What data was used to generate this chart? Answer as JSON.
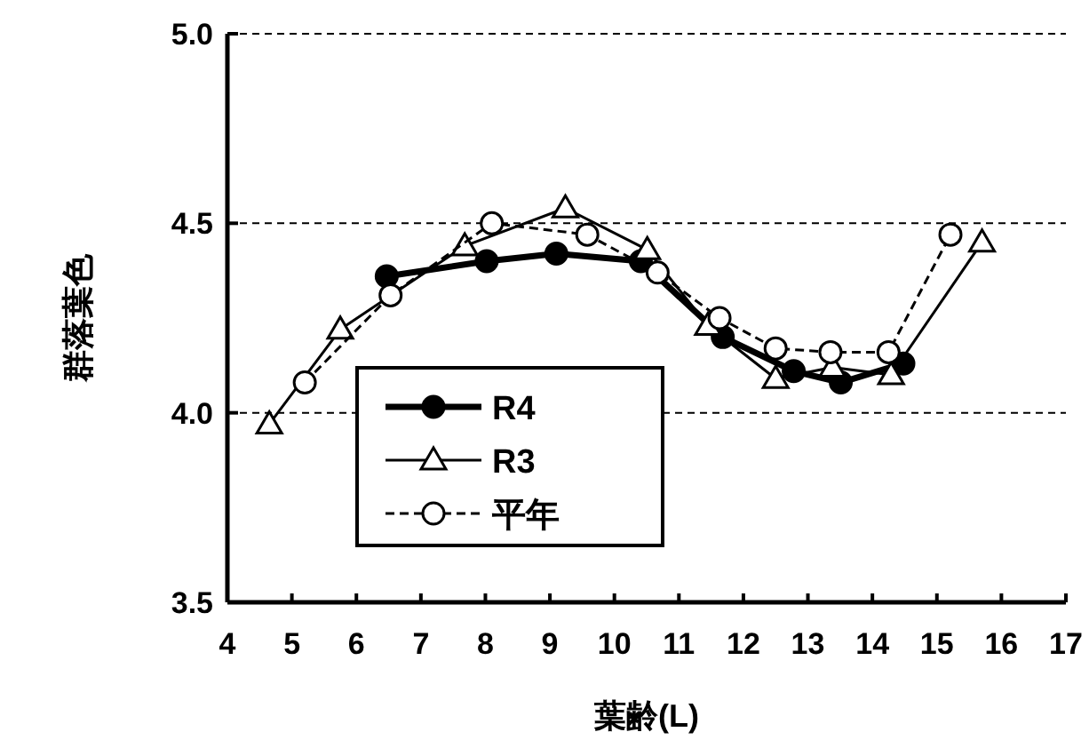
{
  "chart_data": {
    "type": "line",
    "xlabel": "葉齢(L)",
    "ylabel": "群落葉色",
    "xlim": [
      4,
      17
    ],
    "xticks": [
      4,
      5,
      6,
      7,
      8,
      9,
      10,
      11,
      12,
      13,
      14,
      15,
      16,
      17
    ],
    "ylim": [
      3.5,
      5.0
    ],
    "yticks": [
      {
        "value": 3.5,
        "label": "3.5"
      },
      {
        "value": 4.0,
        "label": "4.0"
      },
      {
        "value": 4.5,
        "label": "4.5"
      },
      {
        "value": 5.0,
        "label": "5.0"
      }
    ],
    "grid": "y",
    "legend": "bottom",
    "series": [
      {
        "name": "R4",
        "color": "#000000",
        "marker": "circle",
        "line_style": "solid",
        "x": [
          6.47,
          8.02,
          9.1,
          10.41,
          11.68,
          12.78,
          13.51,
          14.48
        ],
        "values": [
          4.36,
          4.4,
          4.42,
          4.4,
          4.2,
          4.11,
          4.08,
          4.13
        ]
      },
      {
        "name": "R3",
        "color": "#000000",
        "marker": "triangle",
        "line_style": "solid",
        "x": [
          4.65,
          5.75,
          7.68,
          9.24,
          10.51,
          11.45,
          12.5,
          13.38,
          14.29,
          15.7
        ],
        "values": [
          3.97,
          4.22,
          4.44,
          4.54,
          4.43,
          4.23,
          4.09,
          4.12,
          4.1,
          4.45
        ]
      },
      {
        "name": "平年",
        "color": "#000000",
        "marker": "circle",
        "line_style": "dashed",
        "x": [
          5.2,
          6.53,
          8.1,
          9.58,
          10.67,
          11.63,
          12.5,
          13.35,
          14.25,
          15.21
        ],
        "values": [
          4.08,
          4.31,
          4.5,
          4.47,
          4.37,
          4.25,
          4.17,
          4.16,
          4.16,
          4.47
        ]
      }
    ]
  }
}
